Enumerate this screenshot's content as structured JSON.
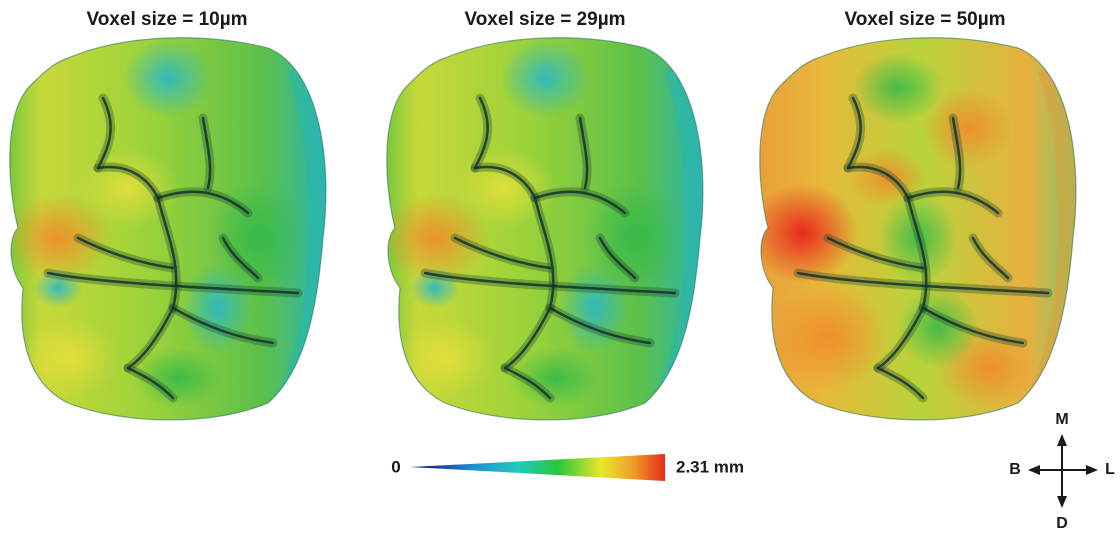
{
  "panels": [
    {
      "title": "Voxel size = 10µm"
    },
    {
      "title": "Voxel size = 29µm"
    },
    {
      "title": "Voxel size = 50µm"
    }
  ],
  "colorbar": {
    "min_label": "0",
    "max_label": "2.31 mm"
  },
  "compass": {
    "top": "M",
    "left": "B",
    "right": "L",
    "bottom": "D"
  }
}
